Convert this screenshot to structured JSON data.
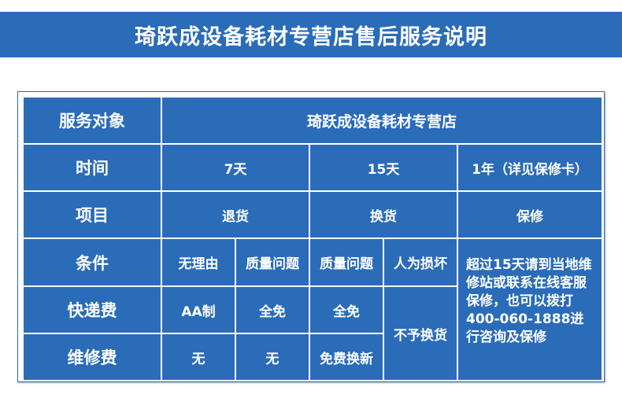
{
  "title": "琦跃成设备耗材专营店售后服务说明",
  "colors": {
    "primary_blue": "#2b6cb9",
    "text": "#ffffff"
  },
  "table": {
    "row_headers": [
      "服务对象",
      "时间",
      "项目",
      "条件",
      "快递费",
      "维修费"
    ],
    "service_target": "琦跃成设备耗材专营店",
    "time": [
      "7天",
      "15天",
      "1年（详见保修卡）"
    ],
    "items": [
      "退货",
      "换货",
      "保修"
    ],
    "conditions": [
      "无理由",
      "质量问题",
      "质量问题",
      "人为损坏"
    ],
    "shipping": [
      "AA制",
      "全免",
      "全免"
    ],
    "repair": [
      "无",
      "无",
      "免费换新"
    ],
    "no_exchange": "不予换货",
    "warranty_note": "超过15天请到当地维修站或联系在线客服保修，也可以拨打400-060-1888进行咨询及保修"
  }
}
